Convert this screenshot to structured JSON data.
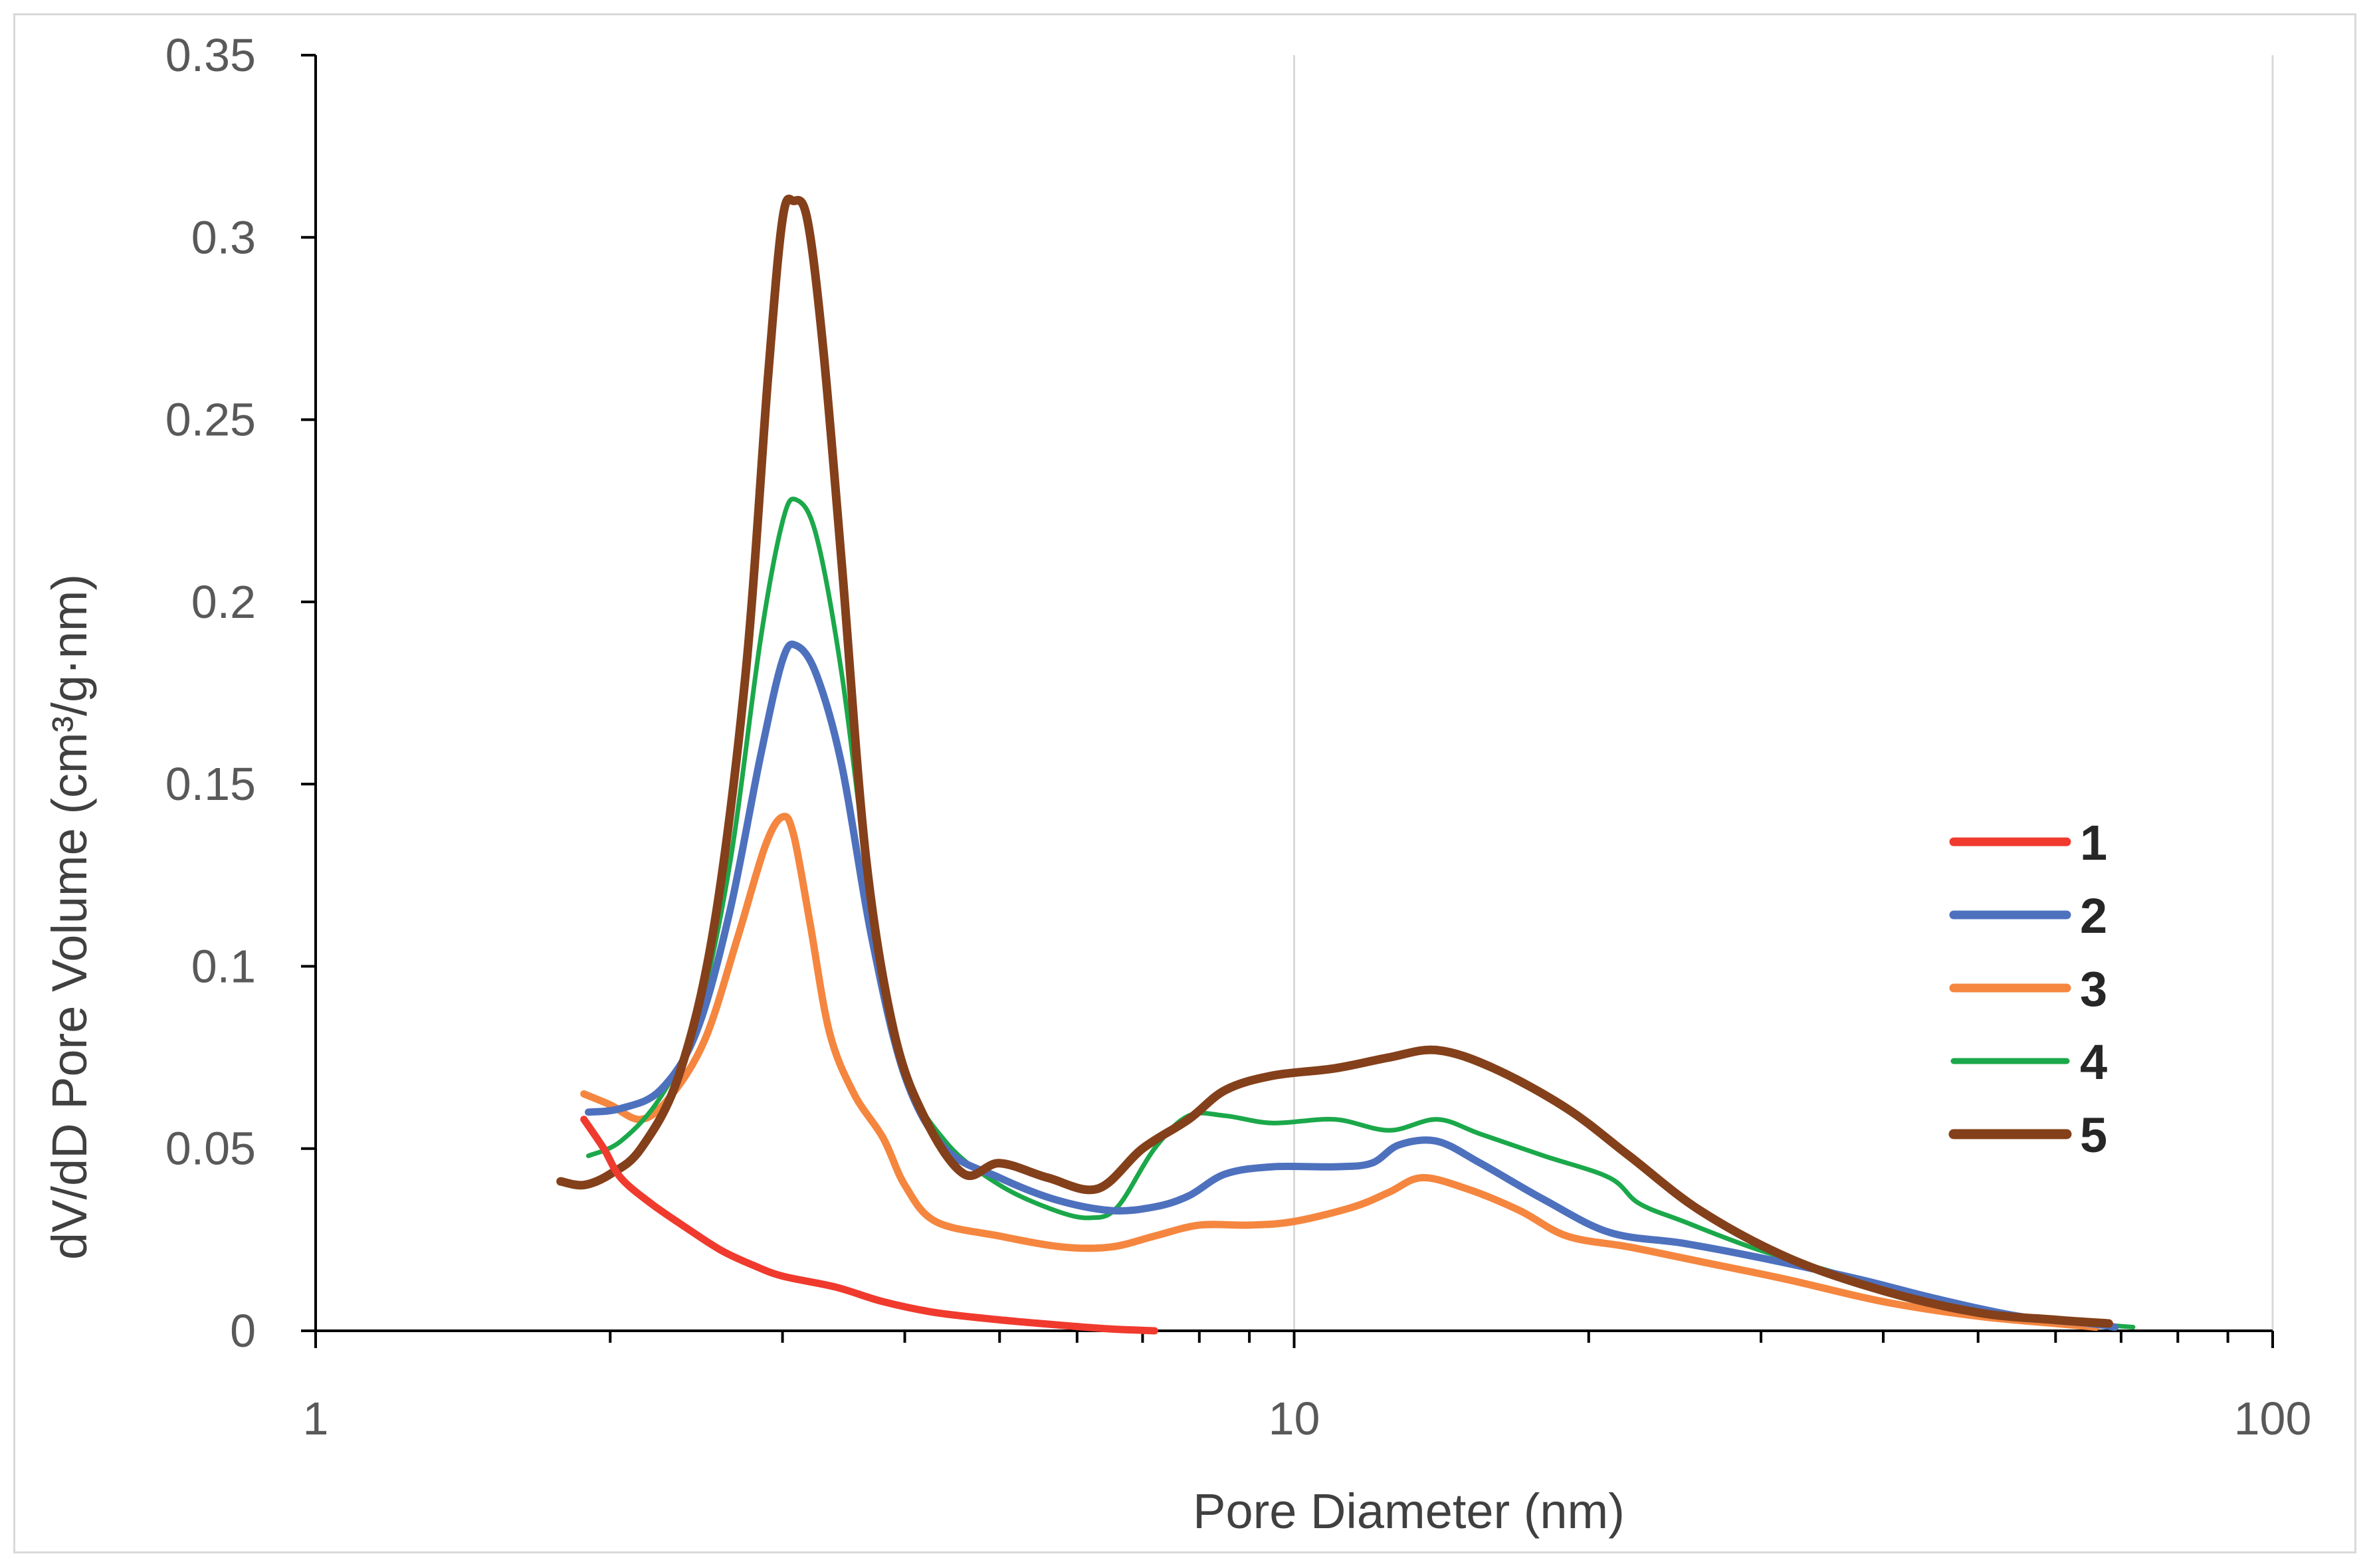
{
  "chart_data": {
    "type": "line",
    "xscale": "log",
    "xlabel": "Pore Diameter (nm)",
    "ylabel": "dV/dD Pore Volume (cm³/g·nm)",
    "xlim": [
      1,
      100
    ],
    "ylim": [
      0,
      0.35
    ],
    "xticks": [
      1,
      10,
      100
    ],
    "xtick_labels": [
      "1",
      "10",
      "100"
    ],
    "yticks": [
      0,
      0.05,
      0.1,
      0.15,
      0.2,
      0.25,
      0.3,
      0.35
    ],
    "ytick_labels": [
      "0",
      "0.05",
      "0.1",
      "0.15",
      "0.2",
      "0.25",
      "0.3",
      "0.35"
    ],
    "grid": "vertical major",
    "legend_position": "right",
    "series": [
      {
        "name": "1",
        "color": "#f03a2e",
        "width": 11,
        "points": [
          [
            1.88,
            0.058
          ],
          [
            1.97,
            0.05
          ],
          [
            2.05,
            0.042
          ],
          [
            2.2,
            0.035
          ],
          [
            2.4,
            0.028
          ],
          [
            2.6,
            0.022
          ],
          [
            2.8,
            0.018
          ],
          [
            3.0,
            0.015
          ],
          [
            3.4,
            0.012
          ],
          [
            3.8,
            0.008
          ],
          [
            4.3,
            0.005
          ],
          [
            5.0,
            0.003
          ],
          [
            5.8,
            0.0015
          ],
          [
            6.5,
            0.0005
          ],
          [
            7.2,
            0.0
          ]
        ]
      },
      {
        "name": "2",
        "color": "#4e71be",
        "width": 11,
        "points": [
          [
            1.9,
            0.06
          ],
          [
            2.05,
            0.061
          ],
          [
            2.25,
            0.066
          ],
          [
            2.45,
            0.082
          ],
          [
            2.65,
            0.115
          ],
          [
            2.85,
            0.158
          ],
          [
            3.0,
            0.184
          ],
          [
            3.1,
            0.188
          ],
          [
            3.25,
            0.18
          ],
          [
            3.45,
            0.155
          ],
          [
            3.7,
            0.108
          ],
          [
            4.0,
            0.07
          ],
          [
            4.4,
            0.05
          ],
          [
            5.0,
            0.042
          ],
          [
            5.7,
            0.036
          ],
          [
            6.5,
            0.033
          ],
          [
            7.2,
            0.034
          ],
          [
            7.8,
            0.037
          ],
          [
            8.5,
            0.043
          ],
          [
            9.5,
            0.045
          ],
          [
            11.0,
            0.045
          ],
          [
            12.0,
            0.046
          ],
          [
            12.8,
            0.051
          ],
          [
            14.0,
            0.052
          ],
          [
            15.5,
            0.046
          ],
          [
            18.0,
            0.036
          ],
          [
            21.0,
            0.027
          ],
          [
            25.0,
            0.024
          ],
          [
            30.0,
            0.02
          ],
          [
            38.0,
            0.014
          ],
          [
            45.0,
            0.009
          ],
          [
            55.0,
            0.004
          ],
          [
            65.0,
            0.002
          ],
          [
            69.0,
            0.001
          ]
        ]
      },
      {
        "name": "3",
        "color": "#f5863f",
        "width": 11,
        "points": [
          [
            1.88,
            0.065
          ],
          [
            2.0,
            0.062
          ],
          [
            2.15,
            0.058
          ],
          [
            2.3,
            0.064
          ],
          [
            2.5,
            0.08
          ],
          [
            2.7,
            0.108
          ],
          [
            2.88,
            0.133
          ],
          [
            3.0,
            0.141
          ],
          [
            3.08,
            0.136
          ],
          [
            3.2,
            0.112
          ],
          [
            3.35,
            0.082
          ],
          [
            3.55,
            0.065
          ],
          [
            3.8,
            0.053
          ],
          [
            4.0,
            0.04
          ],
          [
            4.3,
            0.03
          ],
          [
            5.0,
            0.026
          ],
          [
            5.8,
            0.023
          ],
          [
            6.5,
            0.023
          ],
          [
            7.2,
            0.026
          ],
          [
            8.0,
            0.029
          ],
          [
            9.0,
            0.029
          ],
          [
            10.0,
            0.03
          ],
          [
            11.5,
            0.034
          ],
          [
            12.5,
            0.038
          ],
          [
            13.5,
            0.042
          ],
          [
            15.0,
            0.039
          ],
          [
            17.0,
            0.033
          ],
          [
            19.0,
            0.026
          ],
          [
            22.0,
            0.023
          ],
          [
            26.0,
            0.019
          ],
          [
            32.0,
            0.014
          ],
          [
            40.0,
            0.008
          ],
          [
            50.0,
            0.004
          ],
          [
            60.0,
            0.002
          ],
          [
            66.0,
            0.001
          ]
        ]
      },
      {
        "name": "4",
        "color": "#1ba84a",
        "width": 7,
        "points": [
          [
            1.9,
            0.048
          ],
          [
            2.05,
            0.052
          ],
          [
            2.25,
            0.064
          ],
          [
            2.45,
            0.085
          ],
          [
            2.65,
            0.128
          ],
          [
            2.85,
            0.19
          ],
          [
            3.0,
            0.222
          ],
          [
            3.1,
            0.228
          ],
          [
            3.25,
            0.218
          ],
          [
            3.45,
            0.18
          ],
          [
            3.7,
            0.118
          ],
          [
            4.0,
            0.072
          ],
          [
            4.4,
            0.052
          ],
          [
            5.0,
            0.04
          ],
          [
            5.7,
            0.033
          ],
          [
            6.2,
            0.031
          ],
          [
            6.6,
            0.034
          ],
          [
            7.2,
            0.05
          ],
          [
            7.8,
            0.059
          ],
          [
            8.5,
            0.059
          ],
          [
            9.5,
            0.057
          ],
          [
            11.0,
            0.058
          ],
          [
            12.5,
            0.055
          ],
          [
            14.0,
            0.058
          ],
          [
            15.5,
            0.054
          ],
          [
            18.0,
            0.048
          ],
          [
            21.0,
            0.042
          ],
          [
            22.5,
            0.035
          ],
          [
            25.0,
            0.03
          ],
          [
            30.0,
            0.022
          ],
          [
            38.0,
            0.014
          ],
          [
            45.0,
            0.009
          ],
          [
            55.0,
            0.004
          ],
          [
            65.0,
            0.002
          ],
          [
            72.0,
            0.001
          ]
        ]
      },
      {
        "name": "5",
        "color": "#84401a",
        "width": 13,
        "points": [
          [
            1.78,
            0.041
          ],
          [
            1.88,
            0.04
          ],
          [
            2.0,
            0.043
          ],
          [
            2.15,
            0.05
          ],
          [
            2.35,
            0.07
          ],
          [
            2.55,
            0.11
          ],
          [
            2.75,
            0.18
          ],
          [
            2.9,
            0.262
          ],
          [
            3.0,
            0.305
          ],
          [
            3.08,
            0.31
          ],
          [
            3.18,
            0.305
          ],
          [
            3.3,
            0.27
          ],
          [
            3.45,
            0.21
          ],
          [
            3.65,
            0.13
          ],
          [
            3.9,
            0.082
          ],
          [
            4.2,
            0.058
          ],
          [
            4.6,
            0.043
          ],
          [
            5.0,
            0.046
          ],
          [
            5.6,
            0.042
          ],
          [
            6.3,
            0.039
          ],
          [
            7.0,
            0.05
          ],
          [
            7.8,
            0.058
          ],
          [
            8.5,
            0.066
          ],
          [
            9.5,
            0.07
          ],
          [
            11.0,
            0.072
          ],
          [
            12.5,
            0.075
          ],
          [
            14.0,
            0.077
          ],
          [
            16.0,
            0.072
          ],
          [
            19.0,
            0.061
          ],
          [
            22.0,
            0.048
          ],
          [
            26.0,
            0.033
          ],
          [
            32.0,
            0.02
          ],
          [
            40.0,
            0.011
          ],
          [
            50.0,
            0.005
          ],
          [
            60.0,
            0.003
          ],
          [
            68.0,
            0.002
          ]
        ]
      }
    ]
  }
}
